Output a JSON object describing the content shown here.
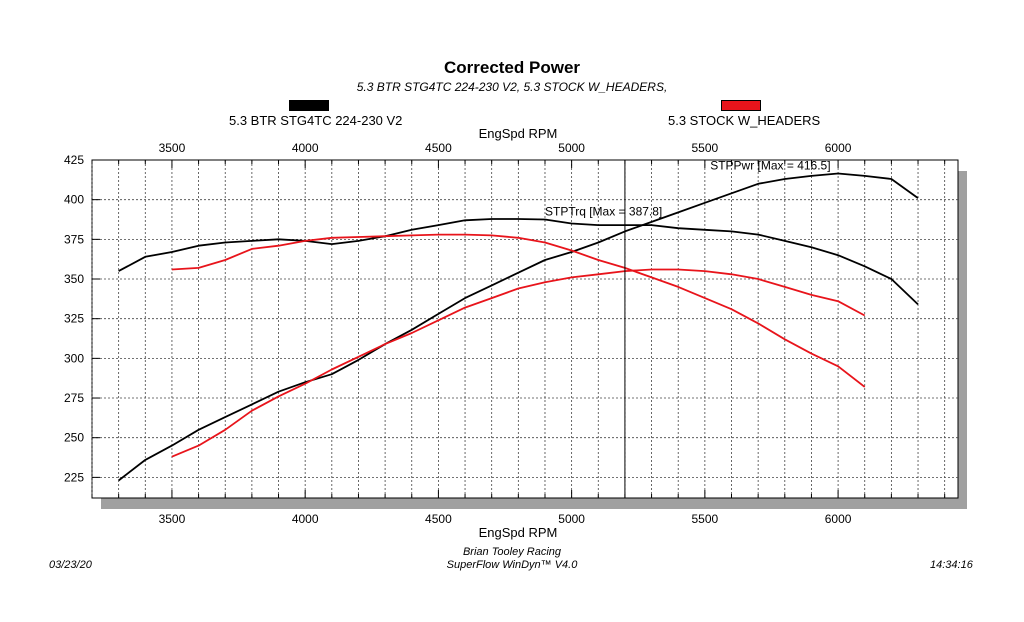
{
  "header": {
    "title": "Corrected Power",
    "subtitle": "5.3 BTR STG4TC 224-230 V2, 5.3 STOCK W_HEADERS,"
  },
  "legend": [
    {
      "label": "5.3 BTR STG4TC 224-230 V2",
      "color": "#000000"
    },
    {
      "label": "5.3 STOCK W_HEADERS",
      "color": "#e8141b"
    }
  ],
  "footer": {
    "date": "03/23/20",
    "shop": "Brian Tooley Racing",
    "software": "SuperFlow WinDyn™ V4.0",
    "time": "14:34:16"
  },
  "colors": {
    "engine1": "#000000",
    "engine2": "#e8141b",
    "grid": "#444444",
    "shadow": "#a0a0a0",
    "cursor": "#000000"
  },
  "chart_data": {
    "type": "line",
    "xlabel_top": "EngSpd RPM",
    "xlabel_bottom": "EngSpd RPM",
    "xlim": [
      3200,
      6450
    ],
    "ylim": [
      212,
      425
    ],
    "xticks": [
      3500,
      4000,
      4500,
      5000,
      5500,
      6000
    ],
    "yticks": [
      225,
      250,
      275,
      300,
      325,
      350,
      375,
      400,
      425
    ],
    "grid": true,
    "cursor_rpm": 5200,
    "annotations": [
      {
        "text": "STPPwr [Max = 416.5]",
        "x": 5520,
        "y": 419
      },
      {
        "text": "STPTrq [Max = 387.8]",
        "x": 4900,
        "y": 390
      }
    ],
    "series": [
      {
        "name": "5.3 BTR STG4TC 224-230 V2",
        "measure": "STPPwr",
        "color": "#000000",
        "x": [
          3300,
          3400,
          3500,
          3600,
          3700,
          3800,
          3900,
          4000,
          4100,
          4200,
          4300,
          4400,
          4500,
          4600,
          4700,
          4800,
          4900,
          5000,
          5100,
          5200,
          5300,
          5400,
          5500,
          5600,
          5700,
          5800,
          5900,
          6000,
          6100,
          6200,
          6300
        ],
        "y": [
          223,
          236,
          245,
          255,
          263,
          271,
          279,
          285,
          290,
          299,
          309,
          318,
          328,
          338,
          346,
          354,
          362,
          367,
          373,
          380,
          386,
          392,
          398,
          404,
          410,
          413,
          415,
          416.5,
          415,
          413,
          401
        ]
      },
      {
        "name": "5.3 BTR STG4TC 224-230 V2",
        "measure": "STPTrq",
        "color": "#000000",
        "x": [
          3300,
          3400,
          3500,
          3600,
          3700,
          3800,
          3900,
          4000,
          4100,
          4200,
          4300,
          4400,
          4500,
          4600,
          4700,
          4800,
          4900,
          5000,
          5100,
          5200,
          5300,
          5400,
          5500,
          5600,
          5700,
          5800,
          5900,
          6000,
          6100,
          6200,
          6300
        ],
        "y": [
          355,
          364,
          367,
          371,
          373,
          374,
          375,
          374,
          372,
          374,
          377,
          381,
          384,
          387,
          387.8,
          387.8,
          387.5,
          385,
          384,
          384,
          384,
          382,
          381,
          380,
          378,
          374,
          370,
          365,
          358,
          350,
          334
        ]
      },
      {
        "name": "5.3 STOCK W_HEADERS",
        "measure": "STPPwr",
        "color": "#e8141b",
        "x": [
          3500,
          3600,
          3700,
          3800,
          3900,
          4000,
          4100,
          4200,
          4300,
          4400,
          4500,
          4600,
          4700,
          4800,
          4900,
          5000,
          5100,
          5200,
          5300,
          5400,
          5500,
          5600,
          5700,
          5800,
          5900,
          6000,
          6100
        ],
        "y": [
          238,
          245,
          255,
          267,
          276,
          284,
          293,
          301,
          309,
          316,
          324,
          332,
          338,
          344,
          348,
          351,
          353,
          355,
          356,
          356,
          355,
          353,
          350,
          345,
          340,
          336,
          327
        ]
      },
      {
        "name": "5.3 STOCK W_HEADERS",
        "measure": "STPTrq",
        "color": "#e8141b",
        "x": [
          3500,
          3600,
          3700,
          3800,
          3900,
          4000,
          4100,
          4200,
          4300,
          4400,
          4500,
          4600,
          4700,
          4800,
          4900,
          5000,
          5100,
          5200,
          5300,
          5400,
          5500,
          5600,
          5700,
          5800,
          5900,
          6000,
          6100
        ],
        "y": [
          356,
          357,
          362,
          369,
          371,
          374,
          376,
          376.5,
          377,
          377.5,
          378,
          378,
          377.5,
          376,
          373,
          368,
          362,
          357,
          351,
          345,
          338,
          331,
          322,
          312,
          303,
          295,
          282
        ]
      }
    ]
  }
}
